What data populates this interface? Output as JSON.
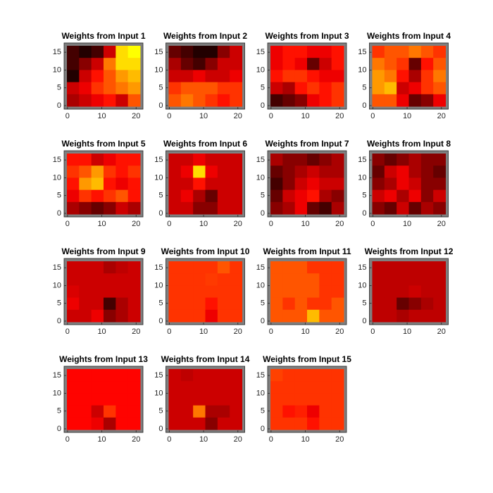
{
  "chart_data": [
    {
      "type": "heatmap",
      "title": "Weights from Input 1",
      "xlim": [
        -1,
        22
      ],
      "ylim": [
        -1,
        17.6
      ],
      "xticks": [
        0,
        10,
        20
      ],
      "yticks": [
        0,
        5,
        10,
        15
      ],
      "colormap": "hot",
      "values": [
        [
          0.1,
          0.05,
          0.1,
          0.3,
          0.7,
          0.75
        ],
        [
          0.1,
          0.2,
          0.3,
          0.55,
          0.7,
          0.7
        ],
        [
          0.05,
          0.3,
          0.4,
          0.5,
          0.6,
          0.65
        ],
        [
          0.3,
          0.35,
          0.45,
          0.5,
          0.55,
          0.6
        ],
        [
          0.25,
          0.3,
          0.35,
          0.4,
          0.3,
          0.5
        ]
      ]
    },
    {
      "type": "heatmap",
      "title": "Weights from Input 2",
      "xlim": [
        -1,
        22
      ],
      "ylim": [
        -1,
        17.6
      ],
      "xticks": [
        0,
        10,
        20
      ],
      "yticks": [
        0,
        5,
        10,
        15
      ],
      "colormap": "hot",
      "values": [
        [
          0.15,
          0.1,
          0.05,
          0.05,
          0.2,
          0.3
        ],
        [
          0.25,
          0.15,
          0.1,
          0.2,
          0.3,
          0.3
        ],
        [
          0.3,
          0.3,
          0.35,
          0.3,
          0.3,
          0.35
        ],
        [
          0.45,
          0.5,
          0.5,
          0.5,
          0.45,
          0.45
        ],
        [
          0.5,
          0.55,
          0.5,
          0.45,
          0.4,
          0.45
        ]
      ]
    },
    {
      "type": "heatmap",
      "title": "Weights from Input 3",
      "xlim": [
        -1,
        22
      ],
      "ylim": [
        -1,
        17.6
      ],
      "xticks": [
        0,
        10,
        20
      ],
      "yticks": [
        0,
        5,
        10,
        15
      ],
      "colormap": "hot",
      "values": [
        [
          0.35,
          0.4,
          0.4,
          0.35,
          0.35,
          0.4
        ],
        [
          0.35,
          0.4,
          0.35,
          0.15,
          0.3,
          0.4
        ],
        [
          0.4,
          0.45,
          0.45,
          0.4,
          0.35,
          0.35
        ],
        [
          0.3,
          0.25,
          0.4,
          0.45,
          0.4,
          0.45
        ],
        [
          0.1,
          0.15,
          0.2,
          0.35,
          0.4,
          0.45
        ]
      ]
    },
    {
      "type": "heatmap",
      "title": "Weights from Input 4",
      "xlim": [
        -1,
        22
      ],
      "ylim": [
        -1,
        17.6
      ],
      "xticks": [
        0,
        10,
        20
      ],
      "yticks": [
        0,
        5,
        10,
        15
      ],
      "colormap": "hot",
      "values": [
        [
          0.45,
          0.5,
          0.5,
          0.55,
          0.5,
          0.45
        ],
        [
          0.55,
          0.5,
          0.45,
          0.15,
          0.4,
          0.5
        ],
        [
          0.6,
          0.55,
          0.4,
          0.25,
          0.45,
          0.55
        ],
        [
          0.6,
          0.65,
          0.3,
          0.35,
          0.45,
          0.5
        ],
        [
          0.5,
          0.5,
          0.35,
          0.15,
          0.2,
          0.35
        ]
      ]
    },
    {
      "type": "heatmap",
      "title": "Weights from Input 5",
      "xlim": [
        -1,
        22
      ],
      "ylim": [
        -1,
        17.6
      ],
      "xticks": [
        0,
        10,
        20
      ],
      "yticks": [
        0,
        5,
        10,
        15
      ],
      "colormap": "hot",
      "values": [
        [
          0.4,
          0.4,
          0.3,
          0.35,
          0.4,
          0.4
        ],
        [
          0.45,
          0.5,
          0.6,
          0.45,
          0.4,
          0.45
        ],
        [
          0.4,
          0.6,
          0.65,
          0.4,
          0.35,
          0.4
        ],
        [
          0.35,
          0.45,
          0.4,
          0.45,
          0.5,
          0.4
        ],
        [
          0.25,
          0.2,
          0.15,
          0.2,
          0.3,
          0.25
        ]
      ]
    },
    {
      "type": "heatmap",
      "title": "Weights from Input 6",
      "xlim": [
        -1,
        22
      ],
      "ylim": [
        -1,
        17.6
      ],
      "xticks": [
        0,
        10,
        20
      ],
      "yticks": [
        0,
        5,
        10,
        15
      ],
      "colormap": "hot",
      "values": [
        [
          0.3,
          0.3,
          0.35,
          0.3,
          0.3,
          0.3
        ],
        [
          0.3,
          0.35,
          0.7,
          0.35,
          0.3,
          0.3
        ],
        [
          0.3,
          0.3,
          0.4,
          0.3,
          0.3,
          0.3
        ],
        [
          0.3,
          0.35,
          0.25,
          0.15,
          0.3,
          0.3
        ],
        [
          0.3,
          0.3,
          0.2,
          0.2,
          0.3,
          0.3
        ]
      ]
    },
    {
      "type": "heatmap",
      "title": "Weights from Input 7",
      "xlim": [
        -1,
        22
      ],
      "ylim": [
        -1,
        17.6
      ],
      "xticks": [
        0,
        10,
        20
      ],
      "yticks": [
        0,
        5,
        10,
        15
      ],
      "colormap": "hot",
      "values": [
        [
          0.25,
          0.2,
          0.2,
          0.15,
          0.2,
          0.25
        ],
        [
          0.15,
          0.2,
          0.25,
          0.3,
          0.25,
          0.25
        ],
        [
          0.1,
          0.2,
          0.3,
          0.35,
          0.3,
          0.3
        ],
        [
          0.15,
          0.3,
          0.35,
          0.4,
          0.25,
          0.2
        ],
        [
          0.2,
          0.25,
          0.35,
          0.15,
          0.1,
          0.25
        ]
      ]
    },
    {
      "type": "heatmap",
      "title": "Weights from Input 8",
      "xlim": [
        -1,
        22
      ],
      "ylim": [
        -1,
        17.6
      ],
      "xticks": [
        0,
        10,
        20
      ],
      "yticks": [
        0,
        5,
        10,
        15
      ],
      "colormap": "hot",
      "values": [
        [
          0.2,
          0.15,
          0.2,
          0.25,
          0.2,
          0.2
        ],
        [
          0.15,
          0.3,
          0.35,
          0.25,
          0.2,
          0.15
        ],
        [
          0.2,
          0.25,
          0.35,
          0.3,
          0.2,
          0.2
        ],
        [
          0.3,
          0.35,
          0.25,
          0.35,
          0.2,
          0.3
        ],
        [
          0.2,
          0.15,
          0.3,
          0.15,
          0.25,
          0.2
        ]
      ]
    },
    {
      "type": "heatmap",
      "title": "Weights from Input 9",
      "xlim": [
        -1,
        22
      ],
      "ylim": [
        -1,
        17.6
      ],
      "xticks": [
        0,
        10,
        20
      ],
      "yticks": [
        0,
        5,
        10,
        15
      ],
      "colormap": "hot",
      "values": [
        [
          0.3,
          0.3,
          0.3,
          0.25,
          0.28,
          0.3
        ],
        [
          0.3,
          0.3,
          0.3,
          0.3,
          0.3,
          0.3
        ],
        [
          0.32,
          0.3,
          0.3,
          0.3,
          0.3,
          0.3
        ],
        [
          0.35,
          0.3,
          0.3,
          0.1,
          0.25,
          0.3
        ],
        [
          0.3,
          0.3,
          0.35,
          0.2,
          0.25,
          0.3
        ]
      ]
    },
    {
      "type": "heatmap",
      "title": "Weights from Input 10",
      "xlim": [
        -1,
        22
      ],
      "ylim": [
        -1,
        17.6
      ],
      "xticks": [
        0,
        10,
        20
      ],
      "yticks": [
        0,
        5,
        10,
        15
      ],
      "colormap": "hot",
      "values": [
        [
          0.45,
          0.45,
          0.45,
          0.45,
          0.5,
          0.45
        ],
        [
          0.45,
          0.45,
          0.45,
          0.46,
          0.45,
          0.45
        ],
        [
          0.45,
          0.45,
          0.45,
          0.45,
          0.45,
          0.45
        ],
        [
          0.45,
          0.45,
          0.45,
          0.4,
          0.45,
          0.45
        ],
        [
          0.45,
          0.45,
          0.45,
          0.35,
          0.45,
          0.45
        ]
      ]
    },
    {
      "type": "heatmap",
      "title": "Weights from Input 11",
      "xlim": [
        -1,
        22
      ],
      "ylim": [
        -1,
        17.6
      ],
      "xticks": [
        0,
        10,
        20
      ],
      "yticks": [
        0,
        5,
        10,
        15
      ],
      "colormap": "hot",
      "values": [
        [
          0.5,
          0.5,
          0.5,
          0.45,
          0.45,
          0.45
        ],
        [
          0.5,
          0.5,
          0.5,
          0.5,
          0.45,
          0.45
        ],
        [
          0.5,
          0.5,
          0.5,
          0.5,
          0.45,
          0.45
        ],
        [
          0.5,
          0.45,
          0.5,
          0.45,
          0.45,
          0.5
        ],
        [
          0.5,
          0.5,
          0.5,
          0.65,
          0.5,
          0.5
        ]
      ]
    },
    {
      "type": "heatmap",
      "title": "Weights from Input 12",
      "xlim": [
        -1,
        22
      ],
      "ylim": [
        -1,
        17.6
      ],
      "xticks": [
        0,
        10,
        20
      ],
      "yticks": [
        0,
        5,
        10,
        15
      ],
      "colormap": "hot",
      "values": [
        [
          0.28,
          0.28,
          0.28,
          0.28,
          0.28,
          0.28
        ],
        [
          0.28,
          0.28,
          0.28,
          0.28,
          0.28,
          0.28
        ],
        [
          0.28,
          0.28,
          0.28,
          0.3,
          0.28,
          0.28
        ],
        [
          0.28,
          0.28,
          0.15,
          0.2,
          0.25,
          0.28
        ],
        [
          0.28,
          0.28,
          0.25,
          0.28,
          0.28,
          0.28
        ]
      ]
    },
    {
      "type": "heatmap",
      "title": "Weights from Input 13",
      "xlim": [
        -1,
        22
      ],
      "ylim": [
        -1,
        17.6
      ],
      "xticks": [
        0,
        10,
        20
      ],
      "yticks": [
        0,
        5,
        10,
        15
      ],
      "colormap": "hot",
      "values": [
        [
          0.38,
          0.38,
          0.38,
          0.38,
          0.38,
          0.38
        ],
        [
          0.38,
          0.38,
          0.38,
          0.38,
          0.38,
          0.38
        ],
        [
          0.38,
          0.38,
          0.38,
          0.38,
          0.38,
          0.38
        ],
        [
          0.38,
          0.38,
          0.3,
          0.45,
          0.38,
          0.38
        ],
        [
          0.38,
          0.38,
          0.35,
          0.25,
          0.38,
          0.38
        ]
      ]
    },
    {
      "type": "heatmap",
      "title": "Weights from Input 14",
      "xlim": [
        -1,
        22
      ],
      "ylim": [
        -1,
        17.6
      ],
      "xticks": [
        0,
        10,
        20
      ],
      "yticks": [
        0,
        5,
        10,
        15
      ],
      "colormap": "hot",
      "values": [
        [
          0.3,
          0.28,
          0.3,
          0.3,
          0.3,
          0.3
        ],
        [
          0.3,
          0.3,
          0.3,
          0.3,
          0.3,
          0.3
        ],
        [
          0.3,
          0.3,
          0.3,
          0.3,
          0.3,
          0.3
        ],
        [
          0.3,
          0.3,
          0.55,
          0.25,
          0.25,
          0.3
        ],
        [
          0.3,
          0.3,
          0.3,
          0.2,
          0.3,
          0.3
        ]
      ]
    },
    {
      "type": "heatmap",
      "title": "Weights from Input 15",
      "xlim": [
        -1,
        22
      ],
      "ylim": [
        -1,
        17.6
      ],
      "xticks": [
        0,
        10,
        20
      ],
      "yticks": [
        0,
        5,
        10,
        15
      ],
      "colormap": "hot",
      "values": [
        [
          0.47,
          0.45,
          0.45,
          0.45,
          0.45,
          0.45
        ],
        [
          0.45,
          0.45,
          0.45,
          0.45,
          0.45,
          0.45
        ],
        [
          0.45,
          0.45,
          0.45,
          0.45,
          0.45,
          0.45
        ],
        [
          0.45,
          0.4,
          0.42,
          0.35,
          0.45,
          0.45
        ],
        [
          0.45,
          0.45,
          0.45,
          0.4,
          0.45,
          0.45
        ]
      ]
    }
  ]
}
